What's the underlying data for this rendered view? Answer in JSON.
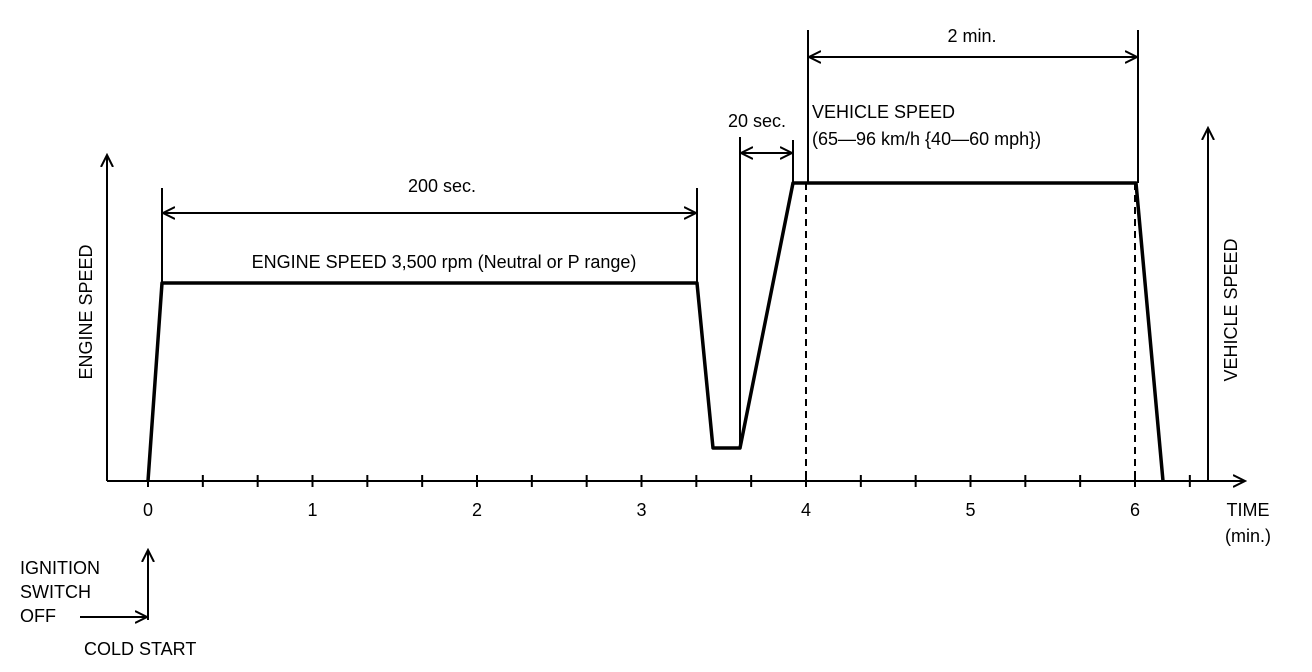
{
  "axes": {
    "left_label": "ENGINE SPEED",
    "right_label": "VEHICLE SPEED",
    "x_label": "TIME",
    "x_unit": "(min.)",
    "x_ticks": [
      "0",
      "1",
      "2",
      "3",
      "4",
      "5",
      "6"
    ]
  },
  "annotations": {
    "duration_1": "200 sec.",
    "phase_1": "ENGINE SPEED 3,500 rpm (Neutral or P range)",
    "duration_2": "20 sec.",
    "phase_3_title": "VEHICLE SPEED",
    "phase_3_range": "(65—96 km/h {40—60 mph})",
    "duration_3": "2 min."
  },
  "start": {
    "ignition_lines": [
      "IGNITION",
      "SWITCH",
      "OFF"
    ],
    "cold_start": "COLD START"
  }
}
